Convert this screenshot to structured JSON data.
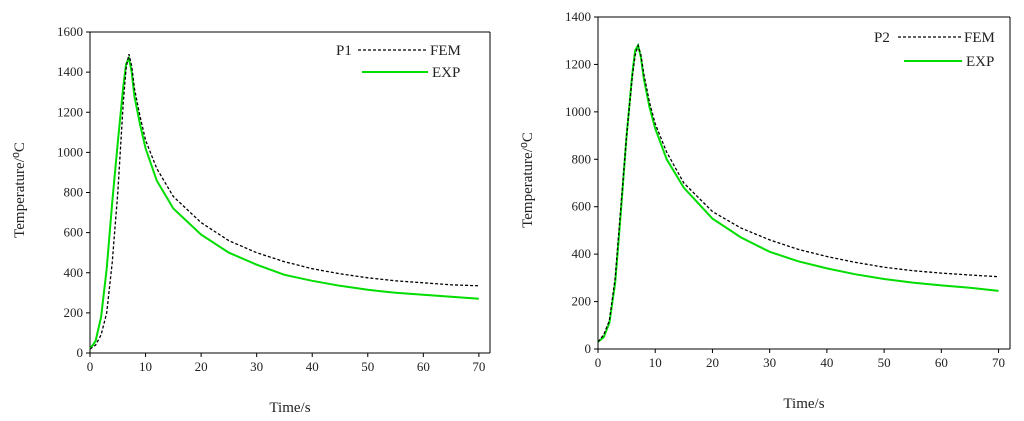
{
  "colors": {
    "fem": "#000000",
    "exp": "#00dd00"
  },
  "chart_data": [
    {
      "type": "line",
      "xlabel": "Time/s",
      "ylabel": "Temperature/⁰C",
      "xlim": [
        0,
        72
      ],
      "ylim": [
        0,
        1600
      ],
      "xticks": [
        0,
        10,
        20,
        30,
        40,
        50,
        60,
        70
      ],
      "yticks": [
        0,
        200,
        400,
        600,
        800,
        1000,
        1200,
        1400,
        1600
      ],
      "legend_title": "P1",
      "legend_position": "top-right",
      "series": [
        {
          "name": "FEM",
          "style": "dashed",
          "x": [
            0,
            1,
            2,
            3,
            4,
            5,
            6,
            6.5,
            7,
            7.5,
            8,
            9,
            10,
            12,
            15,
            20,
            25,
            30,
            35,
            40,
            45,
            50,
            55,
            60,
            65,
            70
          ],
          "y": [
            20,
            40,
            90,
            200,
            450,
            800,
            1250,
            1420,
            1490,
            1430,
            1320,
            1180,
            1060,
            920,
            780,
            650,
            560,
            500,
            455,
            420,
            395,
            375,
            360,
            350,
            340,
            335
          ]
        },
        {
          "name": "EXP",
          "style": "solid",
          "x": [
            0,
            1,
            2,
            3,
            4,
            5,
            6,
            6.5,
            7,
            7.5,
            8,
            9,
            10,
            12,
            15,
            20,
            25,
            30,
            35,
            40,
            45,
            50,
            55,
            60,
            65,
            70
          ],
          "y": [
            20,
            60,
            180,
            420,
            750,
            1050,
            1330,
            1440,
            1470,
            1400,
            1280,
            1140,
            1020,
            860,
            720,
            590,
            500,
            440,
            390,
            360,
            335,
            315,
            300,
            290,
            280,
            270
          ]
        }
      ]
    },
    {
      "type": "line",
      "xlabel": "Time/s",
      "ylabel": "Temperature/⁰C",
      "xlim": [
        0,
        72
      ],
      "ylim": [
        0,
        1400
      ],
      "xticks": [
        0,
        10,
        20,
        30,
        40,
        50,
        60,
        70
      ],
      "yticks": [
        0,
        200,
        400,
        600,
        800,
        1000,
        1200,
        1400
      ],
      "legend_title": "P2",
      "legend_position": "top-right",
      "series": [
        {
          "name": "FEM",
          "style": "dashed",
          "x": [
            0,
            1,
            2,
            3,
            4,
            5,
            6,
            6.5,
            7,
            7.5,
            8,
            9,
            10,
            12,
            15,
            20,
            25,
            30,
            35,
            40,
            45,
            50,
            55,
            60,
            65,
            70
          ],
          "y": [
            30,
            60,
            120,
            300,
            600,
            900,
            1150,
            1240,
            1280,
            1240,
            1160,
            1040,
            950,
            830,
            700,
            580,
            510,
            460,
            420,
            390,
            365,
            345,
            330,
            320,
            312,
            305
          ]
        },
        {
          "name": "EXP",
          "style": "solid",
          "x": [
            0,
            1,
            2,
            3,
            4,
            5,
            6,
            6.5,
            7,
            7.5,
            8,
            9,
            10,
            12,
            15,
            20,
            25,
            30,
            35,
            40,
            45,
            50,
            55,
            60,
            65,
            70
          ],
          "y": [
            30,
            50,
            110,
            280,
            580,
            900,
            1160,
            1260,
            1280,
            1230,
            1140,
            1020,
            930,
            800,
            680,
            550,
            470,
            410,
            370,
            340,
            315,
            295,
            280,
            268,
            258,
            245
          ]
        }
      ]
    }
  ]
}
